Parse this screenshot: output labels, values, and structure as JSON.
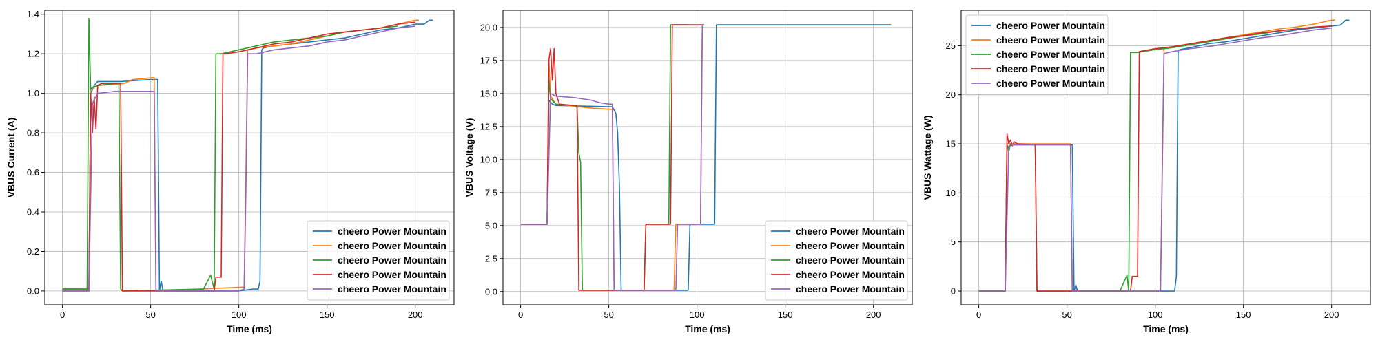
{
  "chart_data": [
    {
      "type": "line",
      "title": "",
      "xlabel": "Time (ms)",
      "ylabel": "VBUS Current (A)",
      "xlim": [
        -10,
        222
      ],
      "ylim": [
        -0.07,
        1.42
      ],
      "xticks": [
        0,
        50,
        100,
        150,
        200
      ],
      "xtick_labels": [
        "0",
        "50",
        "100",
        "150",
        "200"
      ],
      "yticks": [
        0.0,
        0.2,
        0.4,
        0.6,
        0.8,
        1.0,
        1.2,
        1.4
      ],
      "ytick_labels": [
        "0.0",
        "0.2",
        "0.4",
        "0.6",
        "0.8",
        "1.0",
        "1.2",
        "1.4"
      ],
      "grid": true,
      "legend_position": "lower-right",
      "series": [
        {
          "name": "cheero Power Mountain",
          "color": "#1f77b4",
          "x": [
            0,
            15,
            16,
            18,
            20,
            33,
            50,
            54,
            55,
            56,
            57,
            100,
            108,
            111,
            112,
            113,
            114,
            120,
            130,
            140,
            150,
            160,
            170,
            180,
            190,
            200,
            205,
            208,
            210
          ],
          "y": [
            0.01,
            0.01,
            1.0,
            1.04,
            1.06,
            1.06,
            1.07,
            1.07,
            0.0,
            0.05,
            0.0,
            0.0,
            0.01,
            0.01,
            0.05,
            1.22,
            1.23,
            1.24,
            1.25,
            1.26,
            1.27,
            1.28,
            1.3,
            1.32,
            1.33,
            1.35,
            1.35,
            1.37,
            1.37
          ]
        },
        {
          "name": "cheero Power Mountain",
          "color": "#ff7f0e",
          "x": [
            0,
            15,
            16,
            20,
            35,
            40,
            52,
            53,
            54,
            103,
            104,
            105,
            110,
            120,
            130,
            140,
            150,
            160,
            170,
            180,
            190,
            200,
            202
          ],
          "y": [
            0.01,
            0.01,
            1.02,
            1.04,
            1.05,
            1.07,
            1.08,
            0.0,
            0.0,
            0.02,
            0.6,
            1.22,
            1.23,
            1.24,
            1.25,
            1.27,
            1.29,
            1.31,
            1.32,
            1.33,
            1.35,
            1.37,
            1.37
          ]
        },
        {
          "name": "cheero Power Mountain",
          "color": "#2ca02c",
          "x": [
            0,
            14,
            15,
            16,
            17,
            20,
            30,
            32,
            33,
            34,
            80,
            84,
            86,
            87,
            90,
            95,
            100,
            110,
            120,
            130,
            140,
            150,
            160,
            170,
            180,
            190
          ],
          "y": [
            0.01,
            0.01,
            1.38,
            1.02,
            1.03,
            1.04,
            1.05,
            1.05,
            0.01,
            0.0,
            0.01,
            0.08,
            0.01,
            1.2,
            1.2,
            1.21,
            1.22,
            1.24,
            1.26,
            1.27,
            1.28,
            1.29,
            1.31,
            1.32,
            1.33,
            1.34
          ]
        },
        {
          "name": "cheero Power Mountain",
          "color": "#d62728",
          "x": [
            0,
            15,
            16,
            17,
            18,
            19,
            20,
            22,
            33,
            34,
            86,
            87,
            90,
            91,
            92,
            100,
            110,
            120,
            130,
            140,
            150,
            160,
            170,
            180,
            190,
            200
          ],
          "y": [
            0.0,
            0.0,
            1.0,
            0.8,
            0.98,
            0.82,
            1.04,
            1.05,
            1.05,
            0.0,
            0.0,
            0.07,
            0.07,
            1.2,
            1.2,
            1.21,
            1.23,
            1.25,
            1.26,
            1.28,
            1.3,
            1.31,
            1.32,
            1.33,
            1.35,
            1.36
          ]
        },
        {
          "name": "cheero Power Mountain",
          "color": "#9467bd",
          "x": [
            0,
            15,
            17,
            20,
            30,
            50,
            52,
            53,
            70,
            90,
            100,
            103,
            104,
            105,
            110,
            120,
            130,
            140,
            150,
            160,
            170,
            180,
            190,
            200
          ],
          "y": [
            0.0,
            0.0,
            0.95,
            1.0,
            1.01,
            1.01,
            1.01,
            0.0,
            0.0,
            0.0,
            0.0,
            0.01,
            0.5,
            1.2,
            1.2,
            1.22,
            1.23,
            1.24,
            1.26,
            1.27,
            1.29,
            1.31,
            1.33,
            1.34
          ]
        }
      ]
    },
    {
      "type": "line",
      "title": "",
      "xlabel": "Time (ms)",
      "ylabel": "VBUS Voltage (V)",
      "xlim": [
        -10,
        222
      ],
      "ylim": [
        -1.0,
        21.3
      ],
      "xticks": [
        0,
        50,
        100,
        150,
        200
      ],
      "xtick_labels": [
        "0",
        "50",
        "100",
        "150",
        "200"
      ],
      "yticks": [
        0.0,
        2.5,
        5.0,
        7.5,
        10.0,
        12.5,
        15.0,
        17.5,
        20.0
      ],
      "ytick_labels": [
        "0.0",
        "2.5",
        "5.0",
        "7.5",
        "10.0",
        "12.5",
        "15.0",
        "17.5",
        "20.0"
      ],
      "grid": true,
      "legend_position": "lower-right",
      "series": [
        {
          "name": "cheero Power Mountain",
          "color": "#1f77b4",
          "x": [
            0,
            15,
            16,
            18,
            20,
            50,
            52,
            54,
            55,
            56,
            57,
            58,
            95,
            96,
            97,
            100,
            110,
            111,
            112,
            120,
            210
          ],
          "y": [
            5.1,
            5.1,
            14.5,
            14.2,
            14.1,
            14.0,
            14.0,
            13.5,
            12.0,
            8.0,
            0.1,
            0.1,
            0.1,
            5.1,
            5.1,
            5.1,
            5.1,
            20.2,
            20.2,
            20.2,
            20.2
          ]
        },
        {
          "name": "cheero Power Mountain",
          "color": "#ff7f0e",
          "x": [
            0,
            15,
            16,
            17,
            20,
            40,
            52,
            53,
            54,
            87,
            88,
            89,
            102,
            103,
            104
          ],
          "y": [
            5.1,
            5.1,
            17.5,
            14.8,
            14.2,
            13.9,
            13.8,
            0.1,
            0.1,
            0.1,
            5.1,
            5.1,
            5.1,
            20.2,
            20.2
          ]
        },
        {
          "name": "cheero Power Mountain",
          "color": "#2ca02c",
          "x": [
            0,
            15,
            16,
            17,
            20,
            30,
            32,
            33,
            34,
            35,
            70,
            71,
            72,
            84,
            85,
            86,
            90,
            95
          ],
          "y": [
            5.1,
            5.1,
            16.0,
            14.6,
            14.2,
            14.1,
            14.0,
            10.5,
            9.8,
            0.1,
            0.1,
            5.1,
            5.1,
            5.1,
            20.2,
            20.2,
            20.2,
            20.2
          ]
        },
        {
          "name": "cheero Power Mountain",
          "color": "#d62728",
          "x": [
            0,
            15,
            16,
            17,
            18,
            19,
            20,
            22,
            30,
            32,
            33,
            70,
            71,
            72,
            85,
            86,
            87,
            104
          ],
          "y": [
            5.1,
            5.1,
            17.5,
            18.4,
            16.0,
            18.4,
            15.0,
            14.2,
            14.1,
            14.1,
            0.1,
            0.1,
            5.1,
            5.1,
            5.1,
            20.2,
            20.2,
            20.2
          ]
        },
        {
          "name": "cheero Power Mountain",
          "color": "#9467bd",
          "x": [
            0,
            15,
            17,
            20,
            30,
            40,
            45,
            50,
            52,
            53,
            88,
            89,
            90,
            100,
            102,
            103,
            104
          ],
          "y": [
            5.1,
            5.1,
            15.0,
            14.8,
            14.7,
            14.5,
            14.3,
            14.2,
            14.2,
            0.1,
            0.1,
            5.1,
            5.1,
            5.1,
            5.1,
            20.2,
            20.2
          ]
        }
      ]
    },
    {
      "type": "line",
      "title": "",
      "xlabel": "Time (ms)",
      "ylabel": "VBUS Wattage (W)",
      "xlim": [
        -10,
        222
      ],
      "ylim": [
        -1.4,
        28.6
      ],
      "xticks": [
        0,
        50,
        100,
        150,
        200
      ],
      "xtick_labels": [
        "0",
        "50",
        "100",
        "150",
        "200"
      ],
      "yticks": [
        0,
        5,
        10,
        15,
        20,
        25
      ],
      "ytick_labels": [
        "0",
        "5",
        "10",
        "15",
        "20",
        "25"
      ],
      "grid": true,
      "legend_position": "upper-left",
      "series": [
        {
          "name": "cheero Power Mountain",
          "color": "#1f77b4",
          "x": [
            0,
            15,
            16,
            18,
            20,
            50,
            53,
            54,
            55,
            56,
            110,
            111,
            112,
            113,
            114,
            120,
            130,
            140,
            150,
            160,
            170,
            180,
            190,
            200,
            205,
            208,
            210
          ],
          "y": [
            0.0,
            0.0,
            14.5,
            14.9,
            14.9,
            14.9,
            14.9,
            0.0,
            0.6,
            0.0,
            0.0,
            0.0,
            1.5,
            24.5,
            24.6,
            24.8,
            25.2,
            25.4,
            25.7,
            26.0,
            26.3,
            26.6,
            26.8,
            27.0,
            27.1,
            27.6,
            27.6
          ]
        },
        {
          "name": "cheero Power Mountain",
          "color": "#ff7f0e",
          "x": [
            0,
            15,
            16,
            20,
            52,
            53,
            54,
            103,
            104,
            105,
            110,
            120,
            130,
            140,
            150,
            160,
            170,
            180,
            190,
            200,
            202
          ],
          "y": [
            0.0,
            0.0,
            15.0,
            15.0,
            15.0,
            0.0,
            0.0,
            0.0,
            13.0,
            24.7,
            24.9,
            25.2,
            25.5,
            25.8,
            26.1,
            26.4,
            26.7,
            26.9,
            27.2,
            27.6,
            27.6
          ]
        },
        {
          "name": "cheero Power Mountain",
          "color": "#2ca02c",
          "x": [
            0,
            15,
            16,
            17,
            18,
            20,
            30,
            32,
            33,
            80,
            84,
            85,
            86,
            90,
            100,
            110,
            120,
            130,
            140,
            150,
            160,
            170,
            180,
            190
          ],
          "y": [
            0.0,
            0.0,
            15.0,
            14.2,
            15.0,
            14.9,
            14.9,
            14.9,
            0.0,
            0.0,
            1.6,
            0.0,
            24.3,
            24.3,
            24.6,
            24.8,
            25.1,
            25.4,
            25.7,
            26.0,
            26.2,
            26.5,
            26.7,
            26.9
          ]
        },
        {
          "name": "cheero Power Mountain",
          "color": "#d62728",
          "x": [
            0,
            15,
            16,
            17,
            18,
            19,
            20,
            22,
            32,
            33,
            86,
            87,
            90,
            91,
            100,
            110,
            120,
            130,
            140,
            150,
            160,
            170,
            180,
            190,
            200
          ],
          "y": [
            0.0,
            0.0,
            16.0,
            15.0,
            15.4,
            14.8,
            15.2,
            15.0,
            14.9,
            0.0,
            0.0,
            1.5,
            1.5,
            24.4,
            24.7,
            24.9,
            25.2,
            25.5,
            25.8,
            26.0,
            26.3,
            26.5,
            26.7,
            26.9,
            27.0
          ]
        },
        {
          "name": "cheero Power Mountain",
          "color": "#9467bd",
          "x": [
            0,
            15,
            17,
            20,
            50,
            52,
            53,
            100,
            103,
            104,
            105,
            110,
            120,
            130,
            140,
            150,
            160,
            170,
            180,
            190,
            200
          ],
          "y": [
            0.0,
            0.0,
            14.8,
            14.9,
            14.9,
            14.9,
            0.0,
            0.0,
            0.0,
            12.0,
            24.2,
            24.4,
            24.7,
            24.9,
            25.2,
            25.5,
            25.8,
            26.0,
            26.3,
            26.6,
            26.8
          ]
        }
      ]
    }
  ]
}
